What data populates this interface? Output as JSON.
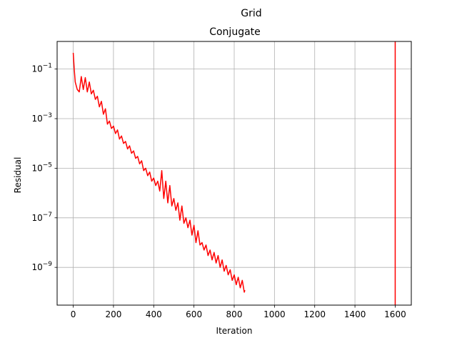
{
  "chart_data": {
    "type": "line",
    "suptitle": "Grid",
    "title": "Conjugate",
    "xlabel": "Iteration",
    "ylabel": "Residual",
    "xlim": [
      -80,
      1680
    ],
    "ylim": [
      3e-11,
      1.3
    ],
    "yscale": "log",
    "grid": true,
    "x_ticks": [
      0,
      200,
      400,
      600,
      800,
      1000,
      1200,
      1400,
      1600
    ],
    "x_tick_labels": [
      "0",
      "200",
      "400",
      "600",
      "800",
      "1000",
      "1200",
      "1400",
      "1600"
    ],
    "y_ticks": [
      1e-09,
      1e-07,
      1e-05,
      0.001,
      0.1
    ],
    "y_tick_labels": [
      {
        "base": "10",
        "exp": "−9"
      },
      {
        "base": "10",
        "exp": "−7"
      },
      {
        "base": "10",
        "exp": "−5"
      },
      {
        "base": "10",
        "exp": "−3"
      },
      {
        "base": "10",
        "exp": "−1"
      }
    ],
    "series": [
      {
        "color": "#ff0000",
        "x": [
          0,
          5,
          10,
          20,
          30,
          40,
          50,
          60,
          70,
          80,
          90,
          100,
          110,
          120,
          130,
          140,
          150,
          160,
          170,
          180,
          190,
          200,
          210,
          220,
          230,
          240,
          250,
          260,
          270,
          280,
          290,
          300,
          310,
          320,
          330,
          340,
          350,
          360,
          370,
          380,
          390,
          400,
          410,
          420,
          430,
          440,
          450,
          460,
          470,
          480,
          490,
          500,
          510,
          520,
          530,
          540,
          550,
          560,
          570,
          580,
          590,
          600,
          610,
          620,
          630,
          640,
          650,
          660,
          670,
          680,
          690,
          700,
          710,
          720,
          730,
          740,
          750,
          760,
          770,
          780,
          790,
          800,
          810,
          820,
          830,
          840,
          850,
          853
        ],
        "y": [
          0.45,
          0.1,
          0.03,
          0.015,
          0.012,
          0.05,
          0.015,
          0.045,
          0.012,
          0.03,
          0.01,
          0.014,
          0.006,
          0.008,
          0.003,
          0.005,
          0.0015,
          0.0025,
          0.0006,
          0.0008,
          0.0004,
          0.0005,
          0.00025,
          0.00035,
          0.00015,
          0.0002,
          0.0001,
          0.00012,
          6e-05,
          8e-05,
          4e-05,
          5e-05,
          2.5e-05,
          3e-05,
          1.5e-05,
          2e-05,
          8e-06,
          1e-05,
          5e-06,
          7e-06,
          3e-06,
          4e-06,
          2e-06,
          3e-06,
          1.2e-06,
          8e-06,
          6e-07,
          3e-06,
          4e-07,
          2e-06,
          3e-07,
          6e-07,
          2e-07,
          4e-07,
          8e-08,
          3e-07,
          6e-08,
          1e-07,
          4e-08,
          8e-08,
          2e-08,
          5e-08,
          1e-08,
          3e-08,
          8e-09,
          1e-08,
          5e-09,
          8e-09,
          3e-09,
          5e-09,
          2e-09,
          4e-09,
          1.5e-09,
          3e-09,
          1e-09,
          2e-09,
          7e-10,
          1.2e-09,
          5e-10,
          8e-10,
          3e-10,
          5e-10,
          2e-10,
          4e-10,
          1.5e-10,
          3e-10,
          1e-10,
          1.2e-10
        ]
      },
      {
        "color": "#ff0000",
        "x": [
          1600,
          1600
        ],
        "y": [
          3e-11,
          1.3
        ]
      }
    ]
  }
}
